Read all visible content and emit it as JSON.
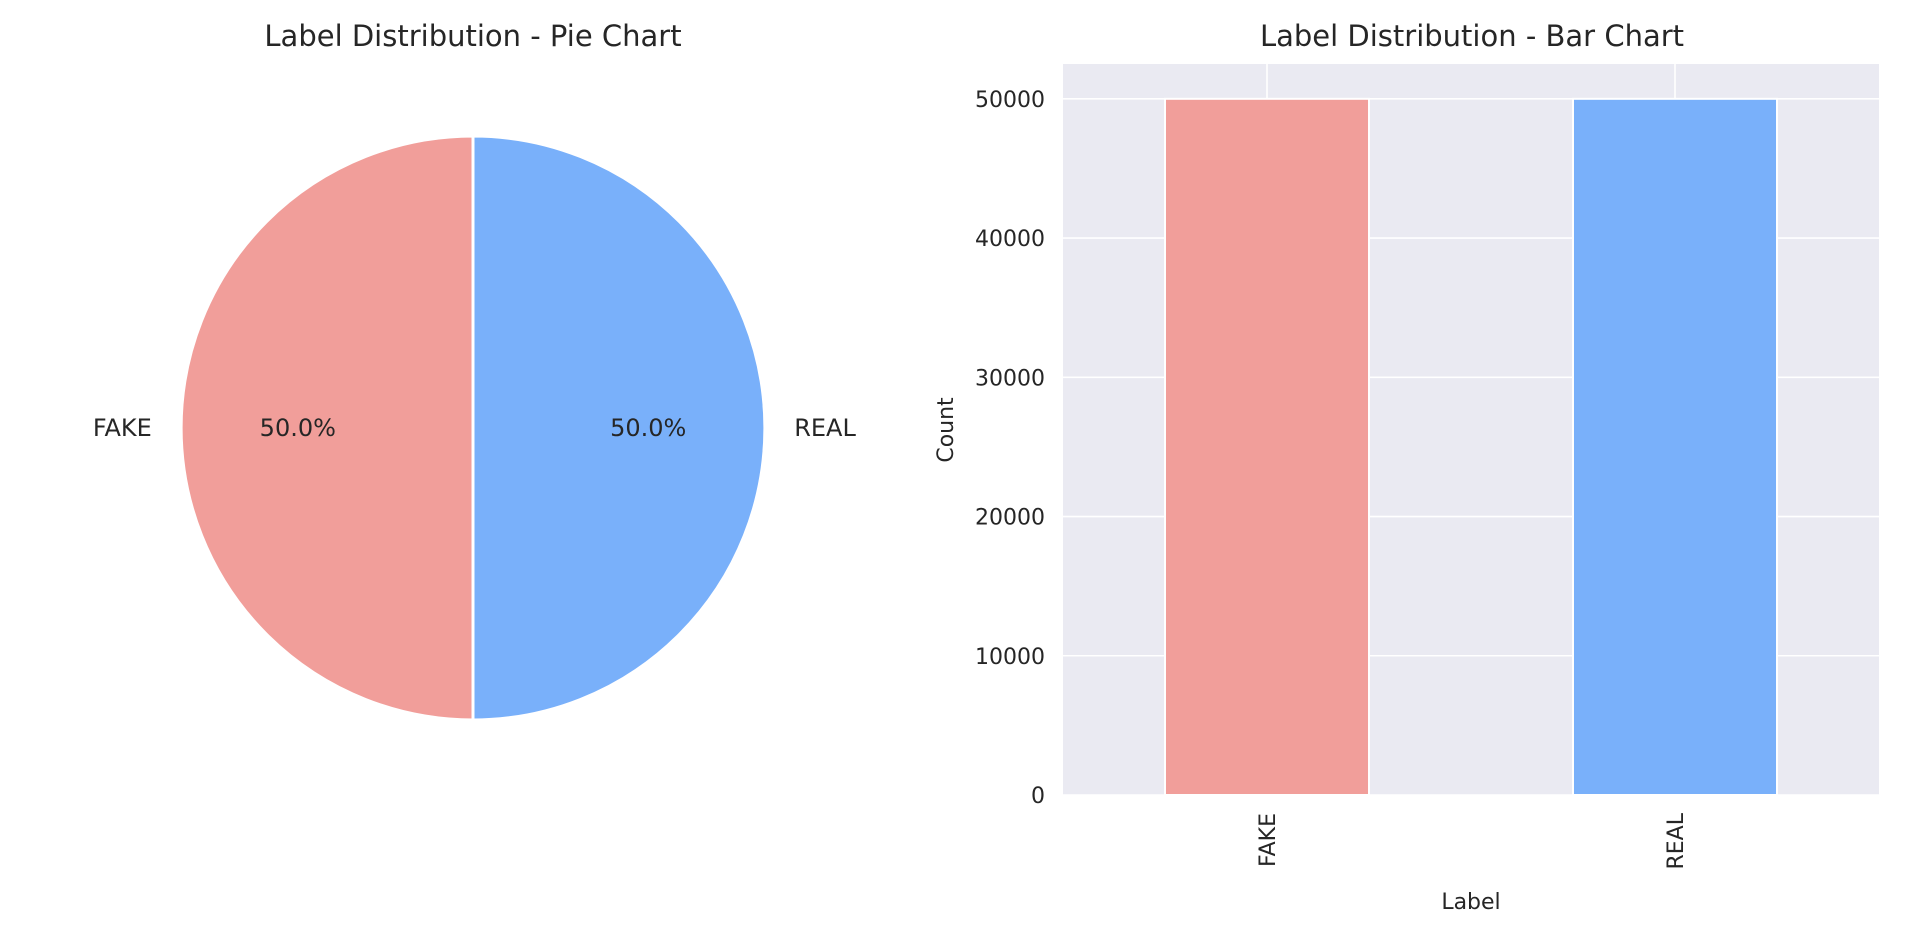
{
  "colors": {
    "fake": "#f19e9a",
    "real": "#79b0fa",
    "panel_bg": "#eaeaf2",
    "grid": "#ffffff",
    "text": "#262626"
  },
  "chart_data": [
    {
      "type": "pie",
      "title": "Label Distribution - Pie Chart",
      "labels": [
        "FAKE",
        "REAL"
      ],
      "values": [
        50.0,
        50.0
      ],
      "value_labels": [
        "50.0%",
        "50.0%"
      ],
      "colors": [
        "#f19e9a",
        "#79b0fa"
      ]
    },
    {
      "type": "bar",
      "title": "Label Distribution - Bar Chart",
      "categories": [
        "FAKE",
        "REAL"
      ],
      "values": [
        50000,
        50000
      ],
      "colors": [
        "#f19e9a",
        "#79b0fa"
      ],
      "xlabel": "Label",
      "ylabel": "Count",
      "ylim": [
        0,
        52500
      ],
      "yticks": [
        0,
        10000,
        20000,
        30000,
        40000,
        50000
      ],
      "grid": true
    }
  ]
}
